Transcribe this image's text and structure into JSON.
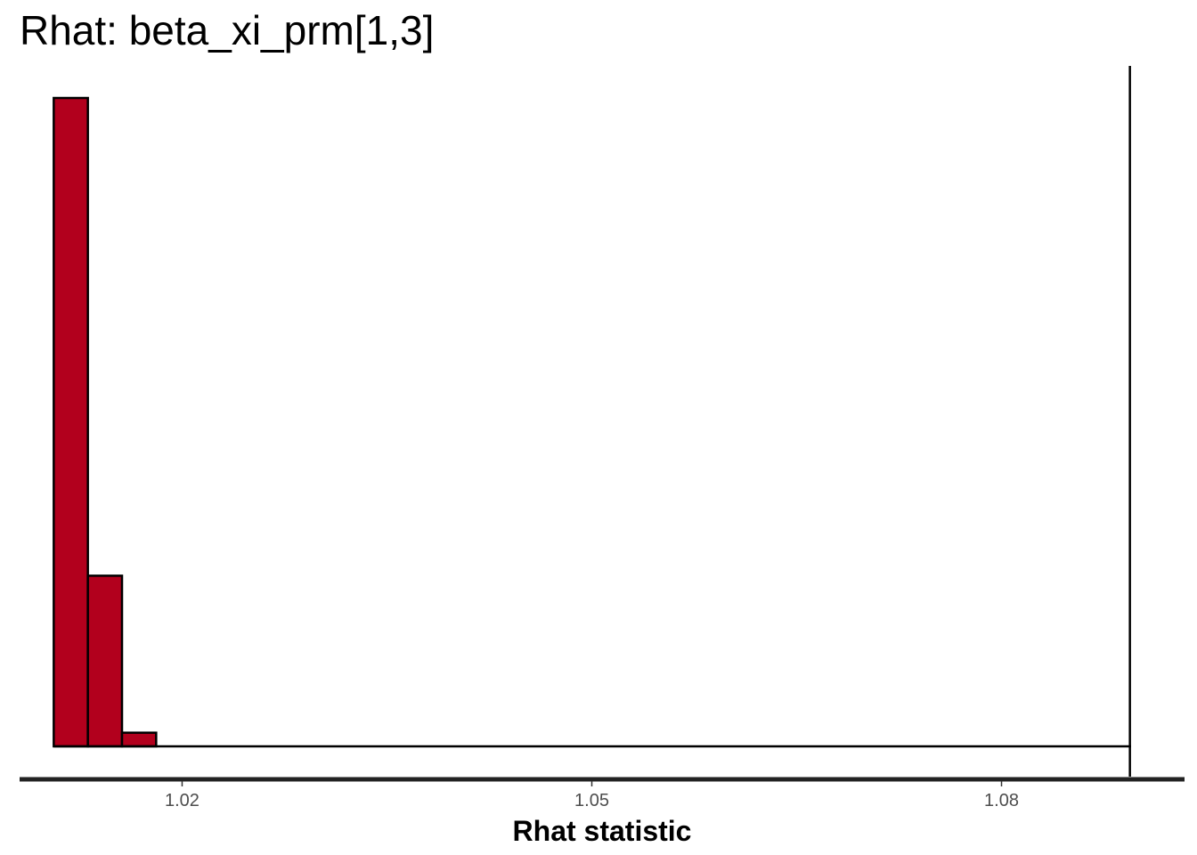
{
  "chart_data": {
    "type": "bar",
    "subtype": "histogram",
    "title": "Rhat: beta_xi_prm[1,3]",
    "xlabel": "Rhat statistic",
    "ylabel": "",
    "xlim": [
      1.0081,
      1.0934
    ],
    "ylim": [
      0,
      38
    ],
    "x_ticks": [
      1.02,
      1.05,
      1.08
    ],
    "x_tick_labels": [
      "1.02",
      "1.05",
      "1.08"
    ],
    "bin_edges": [
      1.0106,
      1.0131,
      1.0156,
      1.0181,
      1.0206,
      1.0231,
      1.0256,
      1.0281,
      1.0306,
      1.0331,
      1.0356,
      1.0381,
      1.0406,
      1.0431,
      1.0456,
      1.0481,
      1.0506,
      1.0531,
      1.0556,
      1.0581,
      1.0606,
      1.0631,
      1.0656,
      1.0681,
      1.0706,
      1.0731,
      1.0756,
      1.0781,
      1.0806,
      1.0831,
      1.0856,
      1.0881,
      1.0906
    ],
    "values": [
      38,
      10,
      0.8,
      0,
      0,
      0,
      0,
      0,
      0,
      0,
      0,
      0,
      0,
      0,
      0,
      0,
      0,
      0,
      0,
      0,
      0,
      0,
      0,
      0,
      0,
      0,
      0,
      0,
      0,
      0,
      0,
      0
    ],
    "reference_line_x": 1.0894,
    "colors": {
      "fill": "#b2001d",
      "outline": "#000000",
      "axis": "#222222"
    },
    "grid": false,
    "legend": "none"
  }
}
